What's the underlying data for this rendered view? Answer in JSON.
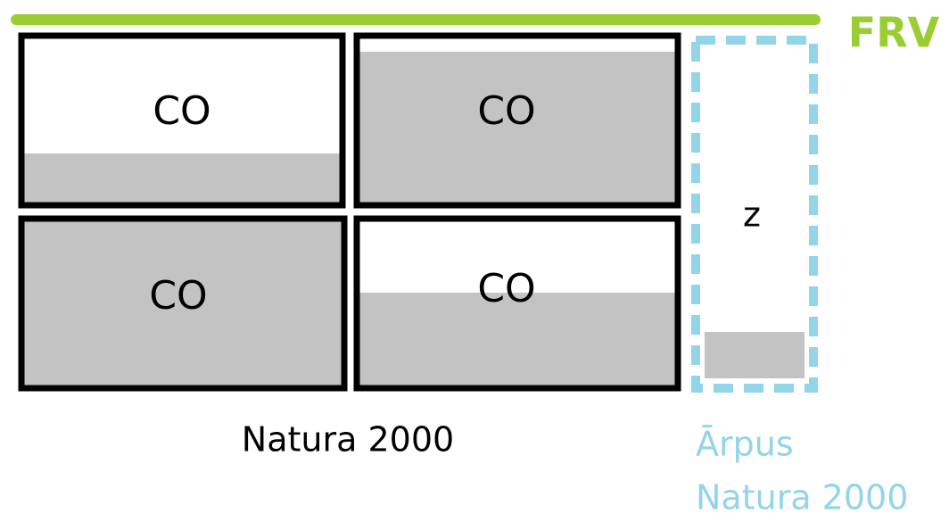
{
  "frv_label": "FRV",
  "cells": [
    {
      "label": "CO"
    },
    {
      "label": "CO"
    },
    {
      "label": "CO"
    },
    {
      "label": "CO"
    }
  ],
  "outside_cell": {
    "label": "z"
  },
  "natura_label": "Natura 2000",
  "outside_label": {
    "line1": "Ārpus",
    "line2": "Natura 2000"
  }
}
